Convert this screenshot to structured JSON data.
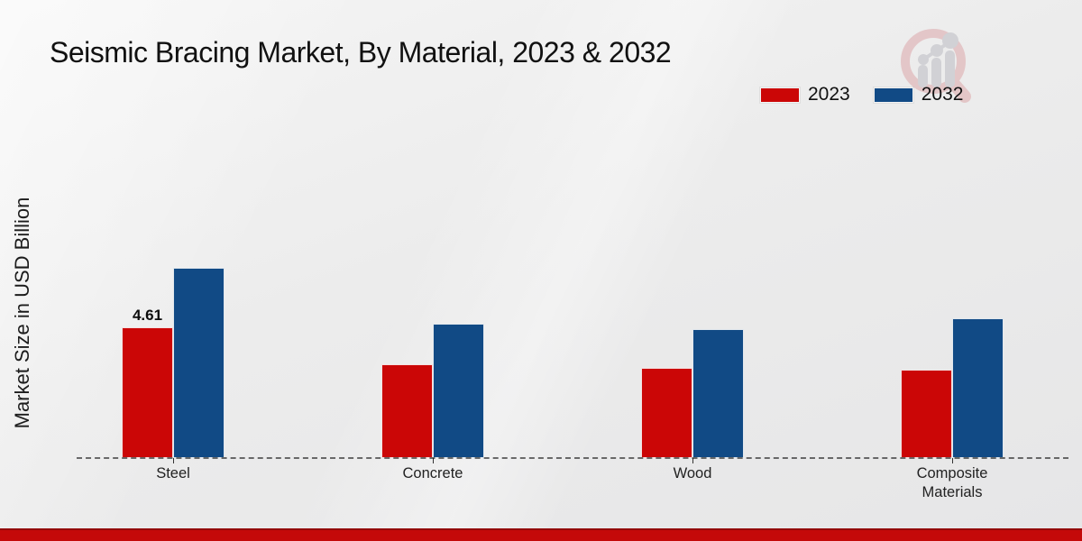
{
  "header": {
    "title": "Seismic Bracing Market, By Material, 2023 & 2032"
  },
  "branding": {
    "watermark_icon": "magnifying-glass-bar-chart-logo"
  },
  "chart_data": {
    "type": "bar",
    "title": "Seismic Bracing Market, By Material, 2023 & 2032",
    "xlabel": "",
    "ylabel": "Market Size in USD Billion",
    "categories": [
      "Steel",
      "Concrete",
      "Wood",
      "Composite Materials"
    ],
    "series": [
      {
        "name": "2023",
        "color": "#cb0606",
        "values": [
          4.61,
          3.3,
          3.18,
          3.12
        ],
        "labels": [
          "4.61",
          "",
          "",
          ""
        ]
      },
      {
        "name": "2032",
        "color": "#114a85",
        "values": [
          6.71,
          4.74,
          4.55,
          4.93
        ],
        "labels": [
          "",
          "",
          "",
          ""
        ]
      }
    ],
    "ylim": [
      0,
      7.5
    ],
    "grid": false,
    "axis_style": "dashed-baseline-only",
    "legend_position": "top-right",
    "value_label_shown_for": "Steel 2023"
  }
}
